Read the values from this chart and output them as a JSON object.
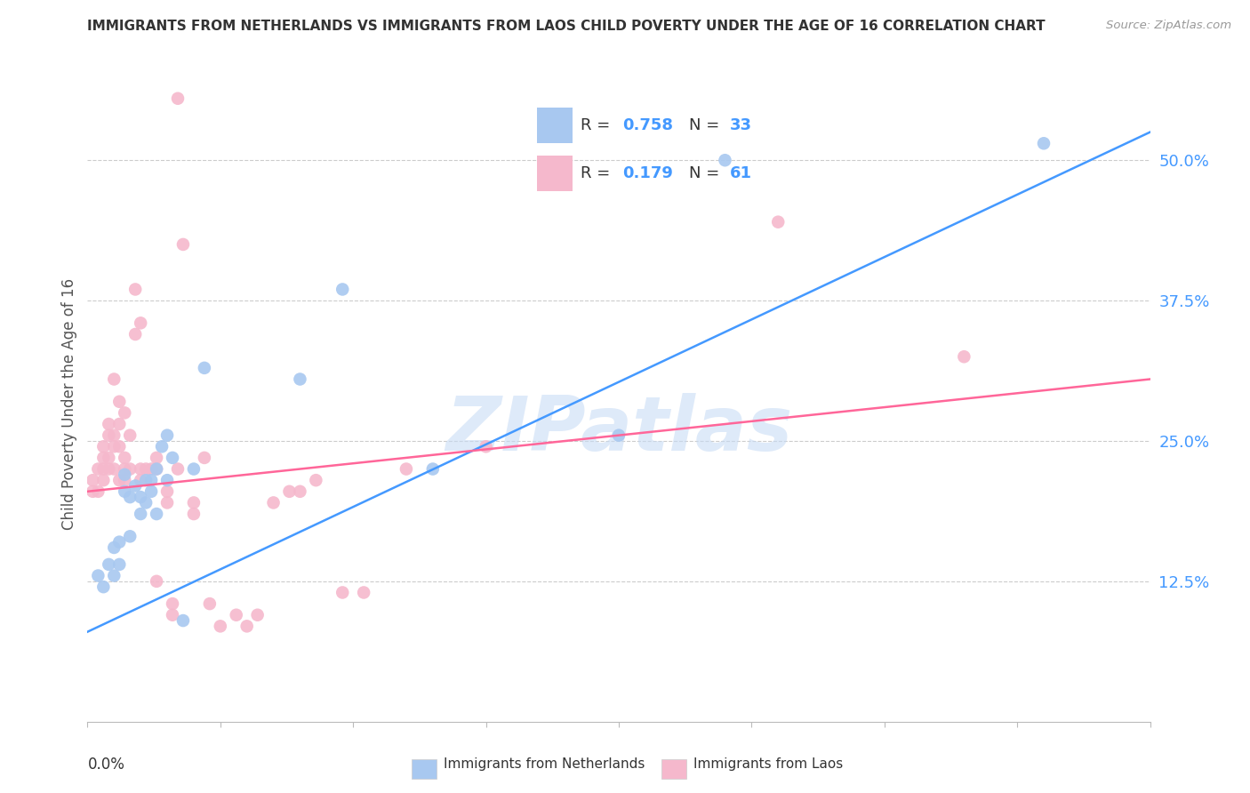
{
  "title": "IMMIGRANTS FROM NETHERLANDS VS IMMIGRANTS FROM LAOS CHILD POVERTY UNDER THE AGE OF 16 CORRELATION CHART",
  "source": "Source: ZipAtlas.com",
  "ylabel": "Child Poverty Under the Age of 16",
  "yaxis_labels": [
    "12.5%",
    "25.0%",
    "37.5%",
    "50.0%"
  ],
  "legend_blue_r_val": "0.758",
  "legend_blue_n_val": "33",
  "legend_pink_r_val": "0.179",
  "legend_pink_n_val": "61",
  "blue_color": "#A8C8F0",
  "pink_color": "#F5B8CC",
  "blue_line_color": "#4499FF",
  "pink_line_color": "#FF6699",
  "watermark": "ZIPatlas",
  "blue_scatter": [
    [
      0.002,
      0.13
    ],
    [
      0.003,
      0.12
    ],
    [
      0.004,
      0.14
    ],
    [
      0.005,
      0.155
    ],
    [
      0.005,
      0.13
    ],
    [
      0.006,
      0.16
    ],
    [
      0.006,
      0.14
    ],
    [
      0.007,
      0.205
    ],
    [
      0.007,
      0.22
    ],
    [
      0.008,
      0.165
    ],
    [
      0.008,
      0.2
    ],
    [
      0.009,
      0.21
    ],
    [
      0.01,
      0.185
    ],
    [
      0.01,
      0.2
    ],
    [
      0.011,
      0.195
    ],
    [
      0.011,
      0.215
    ],
    [
      0.012,
      0.205
    ],
    [
      0.012,
      0.215
    ],
    [
      0.013,
      0.185
    ],
    [
      0.013,
      0.225
    ],
    [
      0.014,
      0.245
    ],
    [
      0.015,
      0.255
    ],
    [
      0.015,
      0.215
    ],
    [
      0.016,
      0.235
    ],
    [
      0.018,
      0.09
    ],
    [
      0.02,
      0.225
    ],
    [
      0.022,
      0.315
    ],
    [
      0.04,
      0.305
    ],
    [
      0.048,
      0.385
    ],
    [
      0.065,
      0.225
    ],
    [
      0.1,
      0.255
    ],
    [
      0.12,
      0.5
    ],
    [
      0.18,
      0.515
    ]
  ],
  "pink_scatter": [
    [
      0.001,
      0.205
    ],
    [
      0.001,
      0.215
    ],
    [
      0.002,
      0.225
    ],
    [
      0.002,
      0.205
    ],
    [
      0.003,
      0.245
    ],
    [
      0.003,
      0.225
    ],
    [
      0.003,
      0.215
    ],
    [
      0.003,
      0.235
    ],
    [
      0.004,
      0.235
    ],
    [
      0.004,
      0.225
    ],
    [
      0.004,
      0.255
    ],
    [
      0.004,
      0.265
    ],
    [
      0.005,
      0.245
    ],
    [
      0.005,
      0.225
    ],
    [
      0.005,
      0.255
    ],
    [
      0.005,
      0.305
    ],
    [
      0.006,
      0.265
    ],
    [
      0.006,
      0.285
    ],
    [
      0.006,
      0.245
    ],
    [
      0.006,
      0.215
    ],
    [
      0.007,
      0.235
    ],
    [
      0.007,
      0.275
    ],
    [
      0.007,
      0.215
    ],
    [
      0.007,
      0.225
    ],
    [
      0.008,
      0.255
    ],
    [
      0.008,
      0.225
    ],
    [
      0.009,
      0.385
    ],
    [
      0.009,
      0.345
    ],
    [
      0.01,
      0.355
    ],
    [
      0.01,
      0.225
    ],
    [
      0.01,
      0.215
    ],
    [
      0.011,
      0.225
    ],
    [
      0.012,
      0.225
    ],
    [
      0.013,
      0.235
    ],
    [
      0.013,
      0.225
    ],
    [
      0.013,
      0.125
    ],
    [
      0.015,
      0.205
    ],
    [
      0.015,
      0.195
    ],
    [
      0.016,
      0.105
    ],
    [
      0.016,
      0.095
    ],
    [
      0.017,
      0.225
    ],
    [
      0.017,
      0.555
    ],
    [
      0.018,
      0.425
    ],
    [
      0.02,
      0.185
    ],
    [
      0.02,
      0.195
    ],
    [
      0.022,
      0.235
    ],
    [
      0.023,
      0.105
    ],
    [
      0.025,
      0.085
    ],
    [
      0.028,
      0.095
    ],
    [
      0.03,
      0.085
    ],
    [
      0.032,
      0.095
    ],
    [
      0.035,
      0.195
    ],
    [
      0.038,
      0.205
    ],
    [
      0.04,
      0.205
    ],
    [
      0.043,
      0.215
    ],
    [
      0.048,
      0.115
    ],
    [
      0.052,
      0.115
    ],
    [
      0.06,
      0.225
    ],
    [
      0.075,
      0.245
    ],
    [
      0.13,
      0.445
    ],
    [
      0.165,
      0.325
    ]
  ],
  "blue_line_x": [
    0.0,
    0.2
  ],
  "blue_line_y": [
    0.08,
    0.525
  ],
  "pink_line_x": [
    0.0,
    0.2
  ],
  "pink_line_y": [
    0.205,
    0.305
  ],
  "xlim": [
    0.0,
    0.2
  ],
  "ylim": [
    0.0,
    0.565
  ],
  "y_tick_vals": [
    0.125,
    0.25,
    0.375,
    0.5
  ]
}
